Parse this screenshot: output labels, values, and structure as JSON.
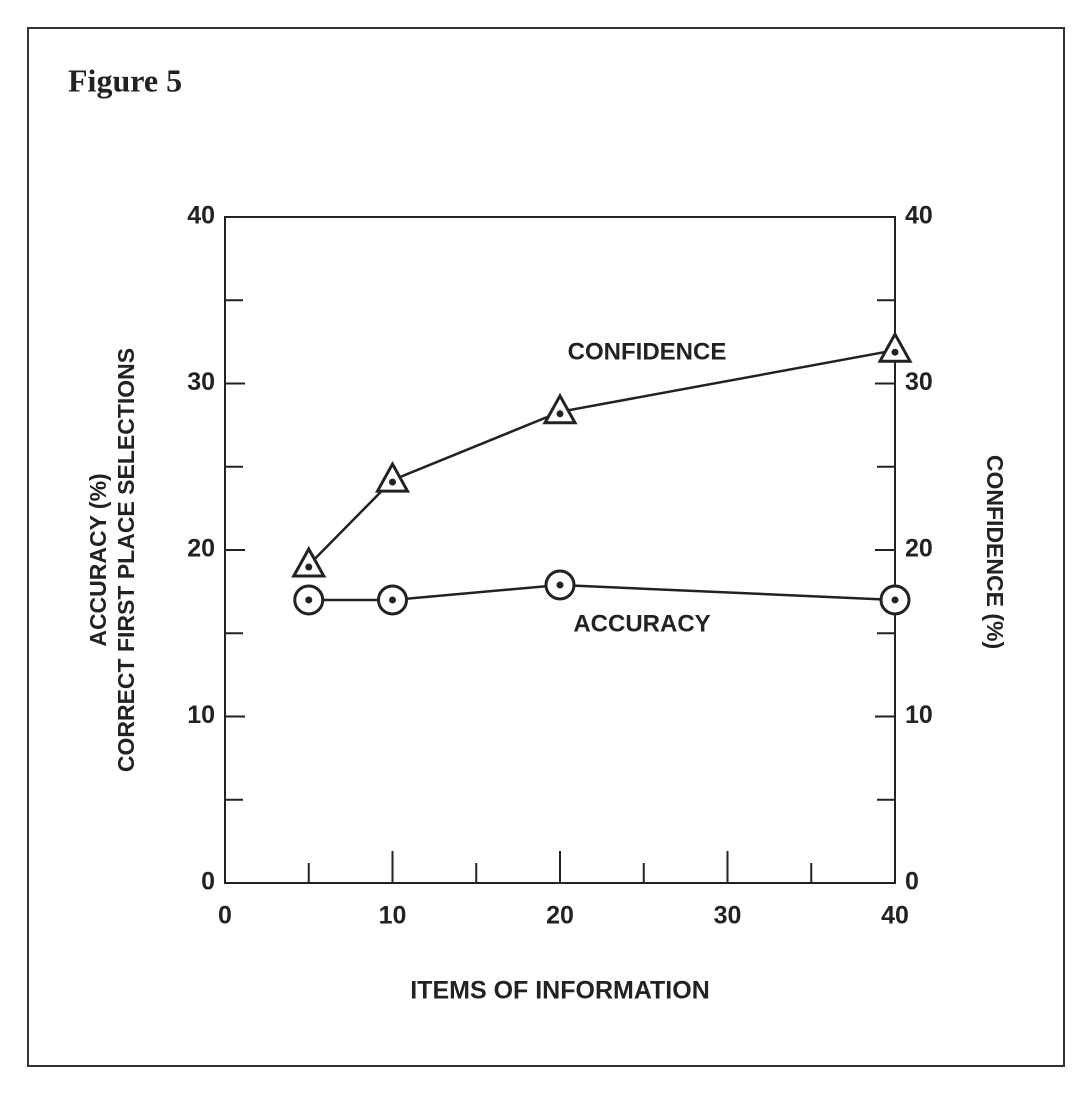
{
  "chart_data": {
    "type": "line",
    "title": "Figure 5",
    "xlabel": "ITEMS OF INFORMATION",
    "ylabel": [
      "ACCURACY (%)",
      "CORRECT FIRST PLACE SELECTIONS"
    ],
    "y2label": "CONFIDENCE (%)",
    "x": [
      5,
      10,
      20,
      40
    ],
    "series": [
      {
        "name": "CONFIDENCE",
        "color": "#222222",
        "marker": "triangle",
        "axis": "y2",
        "values": [
          19.1,
          24.2,
          28.3,
          32.0
        ]
      },
      {
        "name": "ACCURACY",
        "color": "#222222",
        "marker": "circle",
        "values": [
          17.0,
          17.0,
          17.9,
          17.0
        ]
      }
    ],
    "xlim": [
      0,
      40
    ],
    "xticks": [
      0,
      10,
      20,
      30,
      40
    ],
    "xminorticks": [
      5,
      15,
      25,
      35
    ],
    "ylim": [
      0,
      40
    ],
    "yticks": [
      0,
      10,
      20,
      30,
      40
    ],
    "yminorticks": [
      5,
      15,
      25,
      35
    ],
    "y2lim": [
      0,
      40
    ],
    "y2ticks": [
      0,
      10,
      20,
      30,
      40
    ],
    "y2minorticks": [
      5,
      15,
      25,
      35
    ],
    "grid": false
  }
}
